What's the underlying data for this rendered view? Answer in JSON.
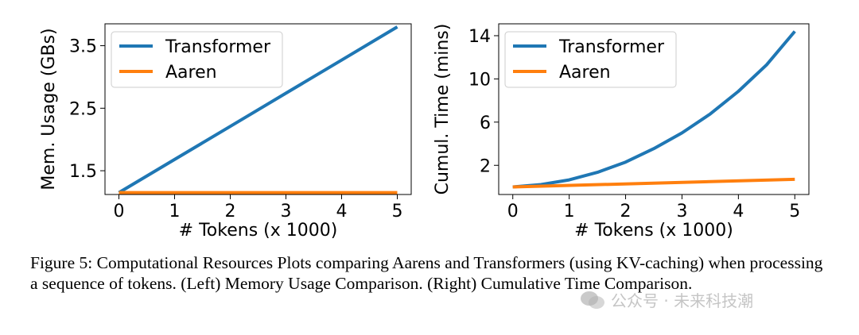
{
  "chart_data": [
    {
      "type": "line",
      "xlabel": "# Tokens (x 1000)",
      "ylabel": "Mem. Usage (GBs)",
      "xlim": [
        -0.25,
        5.25
      ],
      "ylim": [
        1.12,
        3.85
      ],
      "xticks": [
        0,
        1,
        2,
        3,
        4,
        5
      ],
      "yticks": [
        1.5,
        2.5,
        3.5
      ],
      "grid": false,
      "legend": "top-left",
      "series": [
        {
          "name": "Transformer",
          "color": "#1f77b4",
          "x": [
            0,
            1,
            2,
            3,
            4,
            5
          ],
          "values": [
            1.15,
            1.68,
            2.21,
            2.74,
            3.27,
            3.8
          ]
        },
        {
          "name": "Aaren",
          "color": "#ff7f0e",
          "x": [
            0,
            1,
            2,
            3,
            4,
            5
          ],
          "values": [
            1.15,
            1.15,
            1.15,
            1.15,
            1.15,
            1.15
          ]
        }
      ]
    },
    {
      "type": "line",
      "xlabel": "# Tokens (x 1000)",
      "ylabel": "Cumul. Time (mins)",
      "xlim": [
        -0.25,
        5.25
      ],
      "ylim": [
        -0.7,
        15.1
      ],
      "xticks": [
        0,
        1,
        2,
        3,
        4,
        5
      ],
      "yticks": [
        2,
        6,
        10,
        14
      ],
      "grid": false,
      "legend": "top-left",
      "series": [
        {
          "name": "Transformer",
          "color": "#1f77b4",
          "x": [
            0,
            0.5,
            1,
            1.5,
            2,
            2.5,
            3,
            3.5,
            4,
            4.5,
            5
          ],
          "values": [
            0,
            0.22,
            0.65,
            1.35,
            2.3,
            3.55,
            5.0,
            6.75,
            8.85,
            11.3,
            14.4
          ]
        },
        {
          "name": "Aaren",
          "color": "#ff7f0e",
          "x": [
            0,
            5
          ],
          "values": [
            0,
            0.7
          ]
        }
      ]
    }
  ],
  "caption": "Figure 5: Computational Resources Plots comparing Aarens and Transformers (using KV-caching) when processing a sequence of tokens. (Left) Memory Usage Comparison. (Right) Cumulative Time Comparison.",
  "watermark": "公众号 · 未来科技潮"
}
